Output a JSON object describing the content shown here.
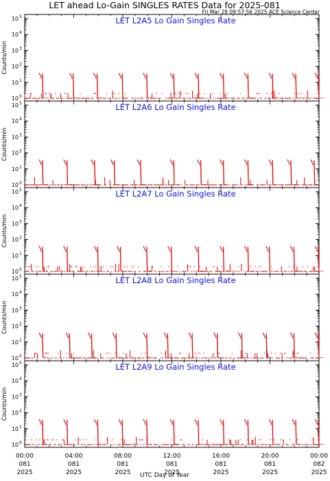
{
  "header": {
    "title": "LET ahead Lo-Gain SINGLES RATES Data for 2025-081",
    "timestamp": "Fri Mar 28 09:57:56 2025 ACE Science Center"
  },
  "colors": {
    "data": "#e00000",
    "panel_title": "#1010e0",
    "axes": "#000000"
  },
  "chart_data": [
    {
      "type": "scatter",
      "title": "LET L2A5 Lo Gain Singles Rate",
      "ylabel": "Counts/min",
      "yscale": "log",
      "ylim": [
        1,
        100000
      ],
      "xlim": [
        0,
        24
      ],
      "burst_hours": [
        1.45,
        3.95,
        5.9,
        7.95,
        9.95,
        12.15,
        14.15,
        16.2,
        18.2,
        20.2,
        22.1,
        23.95
      ],
      "burst_peak": 35,
      "baseline_counts": [
        1,
        2
      ]
    },
    {
      "type": "scatter",
      "title": "LET L2A6 Lo Gain Singles Rate",
      "ylabel": "Counts/min",
      "yscale": "log",
      "ylim": [
        1,
        100000
      ],
      "xlim": [
        0,
        24
      ],
      "burst_hours": [
        1.45,
        3.45,
        5.7,
        7.3,
        9.45,
        12.15,
        14.35,
        16.2,
        18.2,
        20.2,
        21.7,
        23.6
      ],
      "burst_peak": 35,
      "baseline_counts": [
        1
      ]
    },
    {
      "type": "scatter",
      "title": "LET L2A7 Lo Gain Singles Rate",
      "ylabel": "Counts/min",
      "yscale": "log",
      "ylim": [
        1,
        100000
      ],
      "xlim": [
        0,
        24
      ],
      "burst_hours": [
        1.45,
        3.45,
        5.95,
        7.8,
        9.95,
        11.95,
        14.15,
        16.2,
        18.2,
        19.95,
        21.95,
        23.95
      ],
      "burst_peak": 35,
      "baseline_counts": [
        1,
        2
      ]
    },
    {
      "type": "scatter",
      "title": "LET L2A8 Lo Gain Singles Rate",
      "ylabel": "Counts/min",
      "yscale": "log",
      "ylim": [
        1,
        100000
      ],
      "xlim": [
        0,
        24
      ],
      "burst_hours": [
        1.45,
        3.65,
        5.45,
        7.45,
        9.95,
        11.65,
        13.65,
        15.7,
        17.7,
        19.7,
        21.95,
        23.95
      ],
      "burst_peak": 35,
      "baseline_counts": [
        1,
        2
      ]
    },
    {
      "type": "scatter",
      "title": "LET L2A9 Lo Gain Singles Rate",
      "ylabel": "Counts/min",
      "yscale": "log",
      "ylim": [
        1,
        100000
      ],
      "xlim": [
        0,
        24
      ],
      "burst_hours": [
        1.45,
        3.45,
        5.95,
        7.95,
        9.95,
        12.15,
        14.15,
        16.2,
        18.2,
        20.2,
        22.1,
        23.95
      ],
      "burst_peak": 35,
      "baseline_counts": [
        1,
        2
      ]
    }
  ],
  "yticks": [
    {
      "base": "10",
      "exp": "5"
    },
    {
      "base": "10",
      "exp": "4"
    },
    {
      "base": "10",
      "exp": "3"
    },
    {
      "base": "10",
      "exp": "2"
    },
    {
      "base": "10",
      "exp": "1"
    },
    {
      "base": "10",
      "exp": "0"
    }
  ],
  "xaxis": {
    "label": "UTC Day of Year",
    "ticks": [
      {
        "time": "00:00",
        "doy": "081",
        "year": "2025"
      },
      {
        "time": "04:00",
        "doy": "081",
        "year": "2025"
      },
      {
        "time": "08:00",
        "doy": "081",
        "year": "2025"
      },
      {
        "time": "12:00",
        "doy": "081",
        "year": "2025"
      },
      {
        "time": "16:00",
        "doy": "081",
        "year": "2025"
      },
      {
        "time": "20:00",
        "doy": "081",
        "year": "2025"
      },
      {
        "time": "00:00",
        "doy": "082",
        "year": "2025"
      }
    ]
  }
}
